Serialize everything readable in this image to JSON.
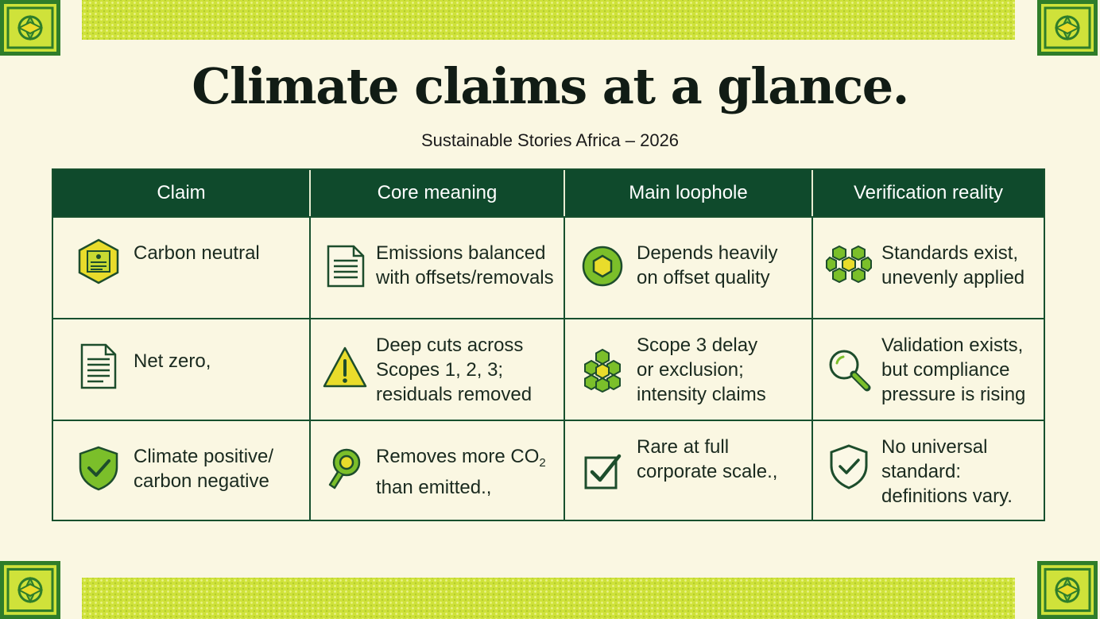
{
  "header": {
    "title": "Climate claims at a glance.",
    "subtitle": "Sustainable Stories Africa – 2026"
  },
  "table": {
    "columns": [
      "Claim",
      "Core meaning",
      "Main loophole",
      "Verification reality"
    ],
    "rows": [
      {
        "claim": "Carbon neutral",
        "claim_icon": "badge-icon",
        "meaning": "Emissions balanced\nwith offsets/removals",
        "meaning_icon": "document-icon",
        "loophole": "Depends heavily\non offset quality",
        "loophole_icon": "hexagon-ring-icon",
        "verification": "Standards exist,\nunevenly applied",
        "verification_icon": "hex-cluster-icon"
      },
      {
        "claim": "Net zero,",
        "claim_icon": "document-icon",
        "meaning": "Deep cuts across\nScopes 1, 2, 3;\nresiduals removed",
        "meaning_icon": "warning-icon",
        "loophole": "Scope 3 delay\nor exclusion;\nintensity claims",
        "loophole_icon": "honeycomb-icon",
        "verification": "Validation exists,\nbut compliance\npressure is rising",
        "verification_icon": "magnifier-icon"
      },
      {
        "claim": "Climate positive/\ncarbon negative",
        "claim_icon": "shield-check-icon",
        "meaning_prefix": "Removes more CO",
        "meaning_sub": "2",
        "meaning_suffix": "\nthan emitted.,",
        "meaning_icon": "ring-pin-icon",
        "loophole": "Rare at full\ncorporate scale.,",
        "loophole_icon": "checkbox-icon",
        "verification": "No universal\nstandard:\ndefinitions vary.",
        "verification_icon": "shield-outline-check-icon"
      }
    ]
  },
  "colors": {
    "header_bg": "#0f4a2c",
    "border": "#17502e",
    "page_bg": "#faf7e2",
    "band": "#cfe23a",
    "icon_green": "#7bbf2a",
    "icon_yellow": "#e9dc2b"
  }
}
